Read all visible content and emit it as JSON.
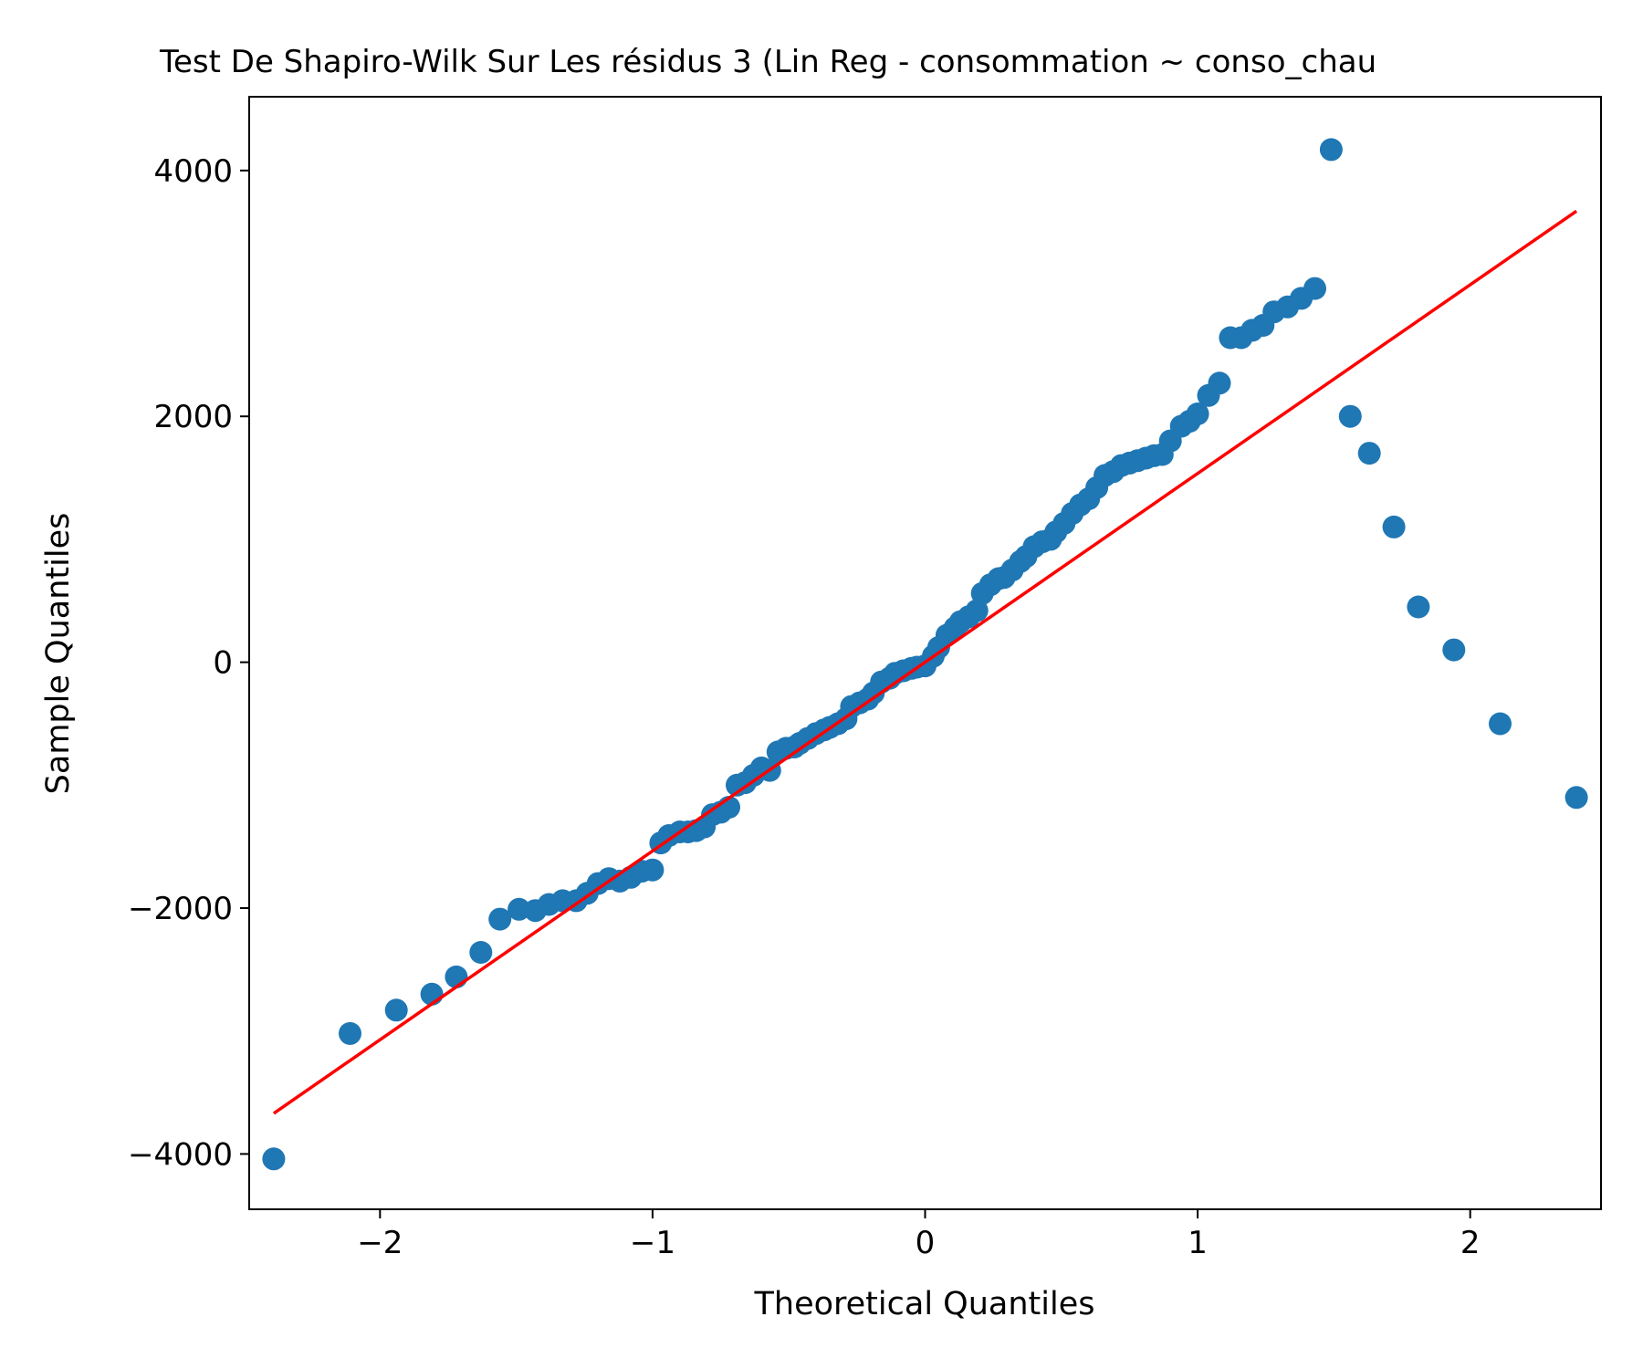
{
  "chart_data": {
    "type": "scatter",
    "title": "Test De Shapiro-Wilk Sur Les résidus 3 (Lin Reg - consommation ~ conso_chau",
    "xlabel": "Theoretical Quantiles",
    "ylabel": "Sample Quantiles",
    "xlim": [
      -2.48,
      2.48
    ],
    "ylim": [
      -4450,
      4600
    ],
    "grid": false,
    "legend": "none",
    "x_ticks": [
      -2,
      -1,
      0,
      1,
      2
    ],
    "x_tick_labels": [
      "−2",
      "−1",
      "0",
      "1",
      "2"
    ],
    "y_ticks": [
      -4000,
      -2000,
      0,
      2000,
      4000
    ],
    "y_tick_labels": [
      "−4000",
      "−2000",
      "0",
      "2000",
      "4000"
    ],
    "colors": {
      "points": "#1f77b4",
      "line": "#ff0000",
      "axes": "#000000"
    },
    "series": [
      {
        "kind": "points",
        "x": [
          -2.39,
          -2.11,
          -1.94,
          -1.81,
          -1.72,
          -1.63,
          -1.56,
          -1.49,
          -1.43,
          -1.38,
          -1.33,
          -1.28,
          -1.24,
          -1.2,
          -1.16,
          -1.12,
          -1.08,
          -1.04,
          -1.0,
          -0.97,
          -0.94,
          -0.9,
          -0.87,
          -0.84,
          -0.81,
          -0.78,
          -0.75,
          -0.72,
          -0.69,
          -0.66,
          -0.63,
          -0.6,
          -0.57,
          -0.54,
          -0.51,
          -0.48,
          -0.46,
          -0.43,
          -0.4,
          -0.37,
          -0.35,
          -0.32,
          -0.29,
          -0.27,
          -0.24,
          -0.21,
          -0.19,
          -0.16,
          -0.13,
          -0.11,
          -0.08,
          -0.05,
          -0.03,
          0.0,
          0.03,
          0.05,
          0.08,
          0.11,
          0.13,
          0.16,
          0.19,
          0.21,
          0.24,
          0.27,
          0.29,
          0.32,
          0.35,
          0.37,
          0.4,
          0.43,
          0.46,
          0.48,
          0.51,
          0.54,
          0.57,
          0.6,
          0.63,
          0.66,
          0.69,
          0.72,
          0.75,
          0.78,
          0.81,
          0.84,
          0.87,
          0.9,
          0.94,
          0.97,
          1.0,
          1.04,
          1.08,
          1.12,
          1.16,
          1.2,
          1.24,
          1.28,
          1.33,
          1.38,
          1.43,
          1.49,
          1.56,
          1.63,
          1.72,
          1.81,
          1.94,
          2.11,
          2.39
        ],
        "y": [
          -4040,
          -3020,
          -2830,
          -2700,
          -2560,
          -2360,
          -2090,
          -2010,
          -2020,
          -1970,
          -1940,
          -1940,
          -1880,
          -1800,
          -1760,
          -1780,
          -1750,
          -1700,
          -1690,
          -1470,
          -1410,
          -1380,
          -1380,
          -1370,
          -1340,
          -1240,
          -1220,
          -1180,
          -1000,
          -980,
          -920,
          -860,
          -880,
          -730,
          -700,
          -690,
          -660,
          -620,
          -580,
          -550,
          -530,
          -500,
          -460,
          -360,
          -330,
          -300,
          -250,
          -160,
          -130,
          -90,
          -70,
          -50,
          -40,
          -30,
          50,
          120,
          220,
          280,
          330,
          370,
          420,
          560,
          630,
          680,
          690,
          750,
          820,
          860,
          940,
          980,
          1000,
          1060,
          1130,
          1210,
          1280,
          1330,
          1420,
          1520,
          1550,
          1600,
          1620,
          1640,
          1660,
          1680,
          1690,
          1800,
          1920,
          1960,
          2020,
          2170,
          2270,
          2640,
          2640,
          2700,
          2740,
          2850,
          2890,
          2960,
          3040,
          4170,
          2000,
          1700,
          1100,
          450,
          100,
          -500,
          -1100
        ],
        "note_order": "points drawn as listed"
      },
      {
        "kind": "reference-line",
        "x": [
          -2.39,
          2.39
        ],
        "y": [
          -3670,
          3670
        ]
      }
    ]
  }
}
